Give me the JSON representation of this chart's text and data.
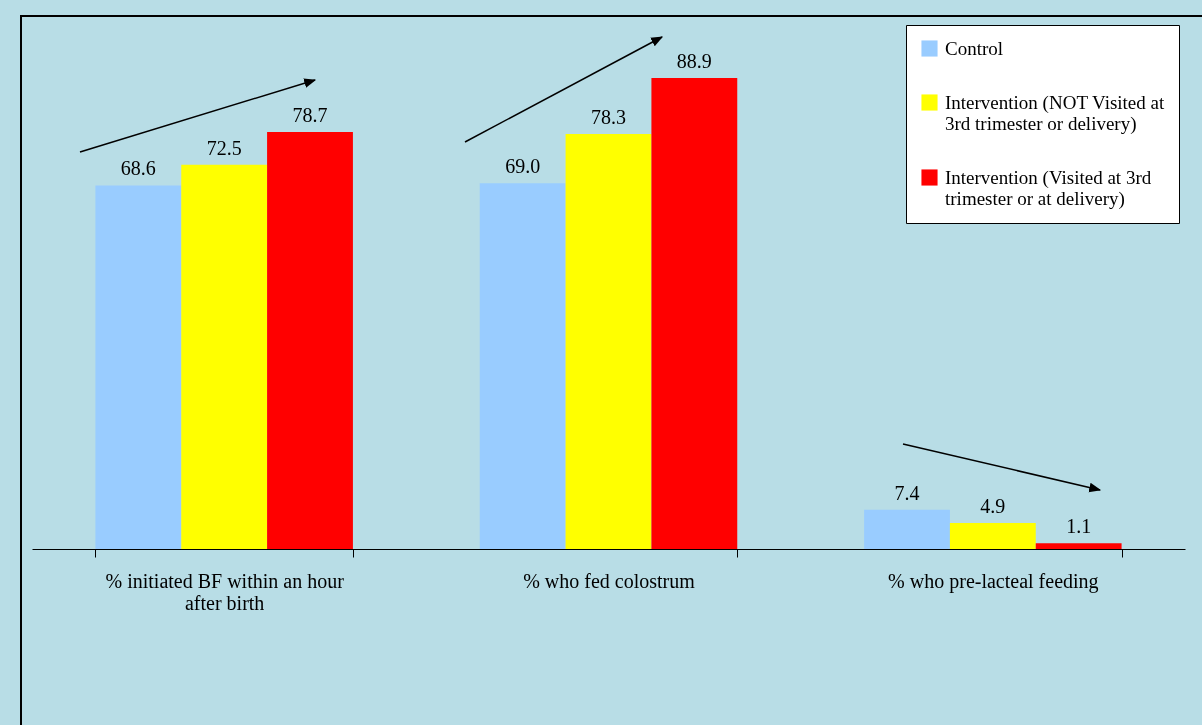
{
  "chart_data": {
    "type": "bar",
    "categories": [
      "% initiated BF within an hour after birth",
      "% who fed colostrum",
      "% who pre-lacteal feeding"
    ],
    "series": [
      {
        "name": "Control",
        "color": "#99ccff",
        "values": [
          68.6,
          69.0,
          7.4
        ],
        "value_labels": [
          "68.6",
          "69.0",
          "7.4"
        ]
      },
      {
        "name": "Intervention (NOT Visited at 3rd trimester or delivery)",
        "color": "#ffff00",
        "values": [
          72.5,
          78.3,
          4.9
        ],
        "value_labels": [
          "72.5",
          "78.3",
          "4.9"
        ]
      },
      {
        "name": "Intervention (Visited at 3rd trimester or at delivery)",
        "color": "#ff0000",
        "values": [
          78.7,
          88.9,
          1.1
        ],
        "value_labels": [
          "78.7",
          "88.9",
          "1.1"
        ]
      }
    ],
    "tick_labels": "x",
    "legend": "top right",
    "grid": false
  }
}
